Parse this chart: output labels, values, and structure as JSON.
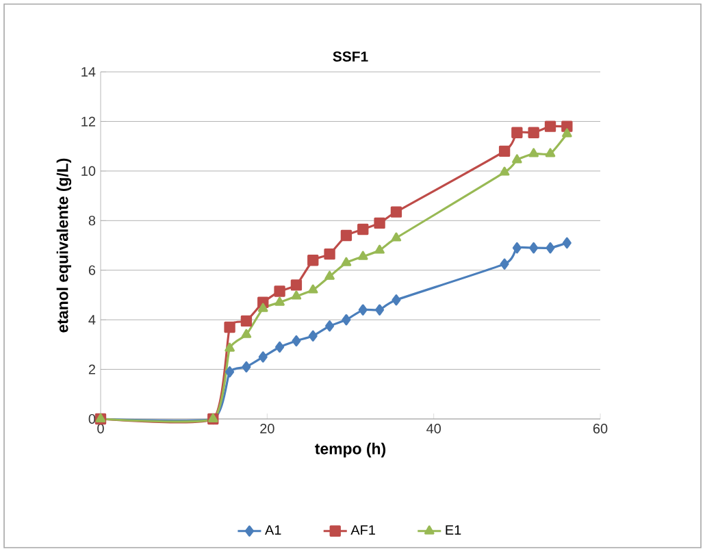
{
  "chart_data": {
    "type": "line",
    "title": "SSF1",
    "xlabel": "tempo (h)",
    "ylabel": "etanol equivalente (g/L)",
    "x": [
      0,
      13.5,
      15.5,
      17.5,
      19.5,
      21.5,
      23.5,
      25.5,
      27.5,
      29.5,
      31.5,
      33.5,
      35.5,
      48.5,
      50,
      52,
      54,
      56
    ],
    "series": [
      {
        "name": "A1",
        "color": "#4a7ebb",
        "marker": "diamond",
        "values": [
          0,
          0,
          1.9,
          2.1,
          2.5,
          2.9,
          3.15,
          3.35,
          3.75,
          4.0,
          4.4,
          4.4,
          4.8,
          6.25,
          6.9,
          6.9,
          6.9,
          7.1
        ]
      },
      {
        "name": "AF1",
        "color": "#be4b48",
        "marker": "square",
        "values": [
          0,
          0,
          3.7,
          3.95,
          4.7,
          5.15,
          5.4,
          6.4,
          6.65,
          7.4,
          7.65,
          7.9,
          8.35,
          10.8,
          11.55,
          11.55,
          11.8,
          11.8
        ]
      },
      {
        "name": "E1",
        "color": "#98b954",
        "marker": "triangle",
        "values": [
          0,
          0,
          2.85,
          3.4,
          4.45,
          4.7,
          4.95,
          5.2,
          5.75,
          6.3,
          6.55,
          6.8,
          7.3,
          9.95,
          10.45,
          10.7,
          10.7,
          11.5
        ]
      }
    ],
    "xlim": [
      0,
      60
    ],
    "ylim": [
      0,
      14
    ],
    "xticks": [
      0,
      20,
      40,
      60
    ],
    "yticks": [
      0,
      2,
      4,
      6,
      8,
      10,
      12,
      14
    ],
    "grid": "y",
    "legend": "bottom",
    "line_style": "solid"
  }
}
